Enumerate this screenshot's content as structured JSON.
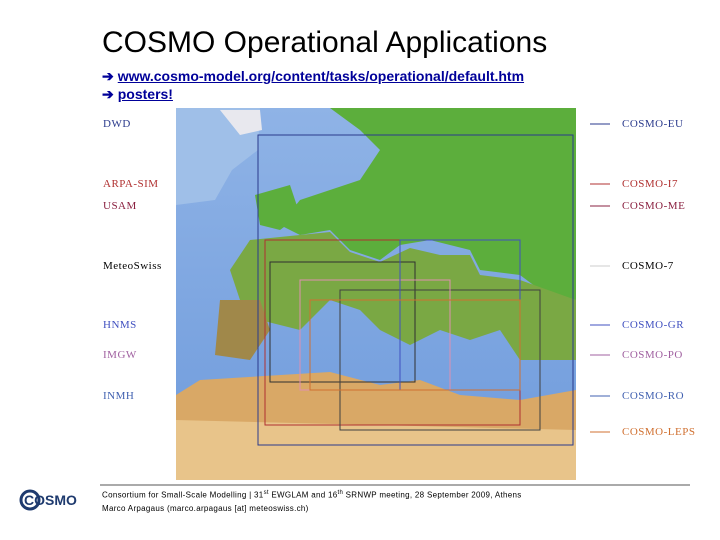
{
  "header": {
    "title": "COSMO Operational Applications",
    "links": [
      "www.cosmo-model.org/content/tasks/operational/default.htm",
      "posters!"
    ]
  },
  "left_labels": [
    "DWD",
    "ARPA-SIM",
    "USAM",
    "MeteoSwiss",
    "HNMS",
    "IMGW",
    "INMH"
  ],
  "right_labels": [
    "COSMO-EU",
    "COSMO-I7",
    "COSMO-ME",
    "COSMO-7",
    "COSMO-GR",
    "COSMO-PO",
    "COSMO-RO",
    "COSMO-LEPS"
  ],
  "footer": {
    "line1": [
      "Consortium for Small-Scale Modelling | 31",
      "st",
      " EWGLAM and 16",
      "th",
      " SRNWP meeting, 28 September 2009, Athens"
    ],
    "line2": "Marco Arpagaus (marco.arpagaus [at] meteoswiss.ch)"
  },
  "logo": "COSMO"
}
